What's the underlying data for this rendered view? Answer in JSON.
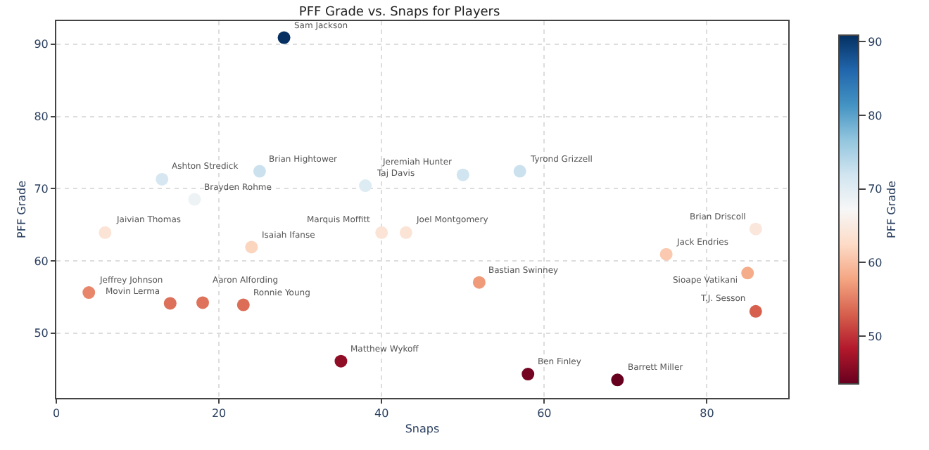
{
  "chart_data": {
    "type": "scatter",
    "title": "PFF Grade vs. Snaps for Players",
    "xlabel": "Snaps",
    "ylabel": "PFF Grade",
    "clabel": "PFF Grade",
    "x": [
      28,
      13,
      25,
      17,
      38,
      50,
      57,
      6,
      24,
      40,
      43,
      4,
      14,
      18,
      23,
      35,
      52,
      58,
      69,
      75,
      86,
      85,
      86
    ],
    "values": [
      90.9,
      71.3,
      72.4,
      68.5,
      70.4,
      71.9,
      72.4,
      63.9,
      61.9,
      63.9,
      63.9,
      55.6,
      54.1,
      54.2,
      53.9,
      46.1,
      57.0,
      44.3,
      43.5,
      60.9,
      64.4,
      58.3,
      53.0
    ],
    "cvalues": [
      90.9,
      71.3,
      72.4,
      68.5,
      70.4,
      71.9,
      72.4,
      63.9,
      61.9,
      63.9,
      63.9,
      55.6,
      54.1,
      54.2,
      53.9,
      46.1,
      57.0,
      44.3,
      43.5,
      60.9,
      64.4,
      58.3,
      53.0
    ],
    "value_labels": [
      "Sam Jackson",
      "Ashton Stredick",
      "Brian Hightower",
      "Brayden Rohme",
      "Taj Davis",
      "Jeremiah Hunter",
      "Tyrond Grizzell",
      "Jaivian Thomas",
      "Isaiah Ifanse",
      "Marquis Moffitt",
      "Joel Montgomery",
      "Jeffrey Johnson",
      "Movin Lerma",
      "Aaron Alfording",
      "Ronnie Young",
      "Matthew Wykoff",
      "Bastian Swinney",
      "Ben Finley",
      "Barrett Miller",
      "Jack Endries",
      "Brian Driscoll",
      "Sioape Vatikani",
      "T.J. Sesson"
    ],
    "xlim": [
      0,
      90
    ],
    "xticks": [
      0,
      20,
      40,
      60,
      80
    ],
    "ylim": [
      41,
      93.2
    ],
    "yticks": [
      50,
      60,
      70,
      80,
      90
    ],
    "clim": [
      43.5,
      90.9
    ],
    "cticks": [
      50,
      60,
      70,
      80,
      90
    ],
    "grid": true,
    "marker": "circle",
    "legend": false
  }
}
